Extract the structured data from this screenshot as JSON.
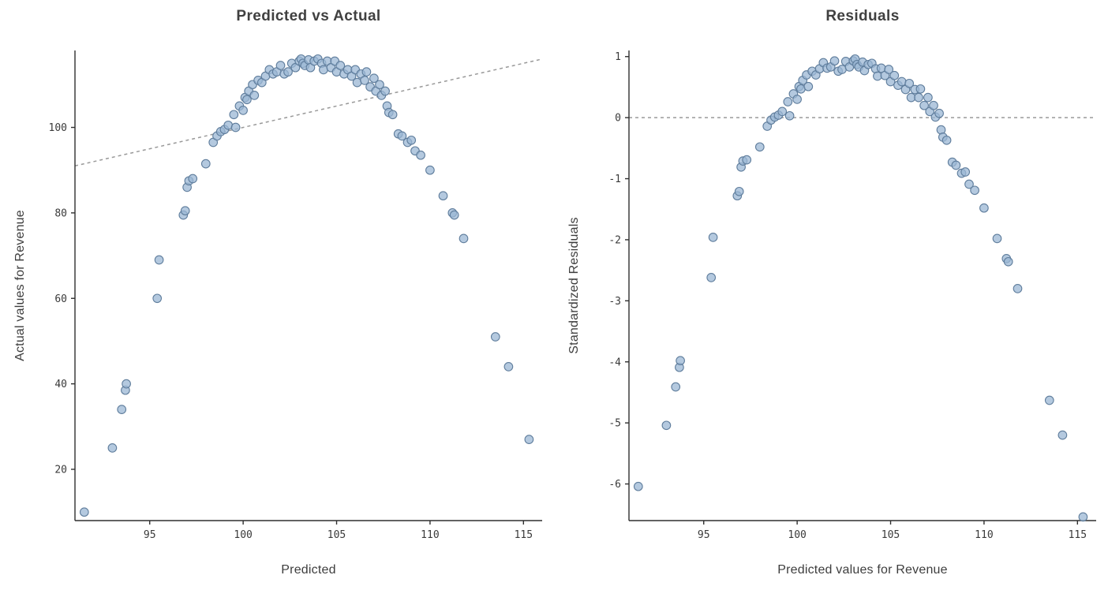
{
  "colors": {
    "background": "#ffffff",
    "marker_fill": "#9bb7d4",
    "marker_stroke": "#5f7d9c",
    "axis": "#2f2f2f",
    "reference_line": "#999999",
    "title_text": "#404040",
    "tick_text": "#3a3a3a"
  },
  "chart_data": [
    {
      "type": "scatter",
      "title": "Predicted vs Actual",
      "xlabel": "Predicted",
      "ylabel": "Actual values for Revenue",
      "xlim": [
        91,
        116
      ],
      "ylim": [
        8,
        118
      ],
      "xticks": [
        95,
        100,
        105,
        110,
        115
      ],
      "yticks": [
        20,
        40,
        60,
        80,
        100
      ],
      "grid": false,
      "legend": "none",
      "reference_line": {
        "label": "identity-line",
        "style": "dashed",
        "from": [
          91,
          91
        ],
        "to": [
          116,
          116
        ]
      },
      "x": [
        91.5,
        93.0,
        93.5,
        93.7,
        93.75,
        95.4,
        95.5,
        96.8,
        96.9,
        97.0,
        97.1,
        97.3,
        98.0,
        98.4,
        98.6,
        98.8,
        99.0,
        99.2,
        99.5,
        99.6,
        99.8,
        100.0,
        100.1,
        100.2,
        100.3,
        100.5,
        100.6,
        100.8,
        101.0,
        101.2,
        101.4,
        101.6,
        101.8,
        102.0,
        102.2,
        102.4,
        102.6,
        102.8,
        103.0,
        103.1,
        103.2,
        103.3,
        103.5,
        103.6,
        103.8,
        104.0,
        104.2,
        104.3,
        104.5,
        104.7,
        104.9,
        105.0,
        105.2,
        105.4,
        105.6,
        105.8,
        106.0,
        106.1,
        106.3,
        106.5,
        106.6,
        106.8,
        107.0,
        107.1,
        107.3,
        107.4,
        107.6,
        107.7,
        107.8,
        108.0,
        108.3,
        108.5,
        108.8,
        109.0,
        109.2,
        109.5,
        110.0,
        110.7,
        111.2,
        111.3,
        111.8,
        113.5,
        114.2,
        115.3
      ],
      "y": [
        10,
        25,
        34,
        38.5,
        40,
        60,
        69,
        79.5,
        80.5,
        86,
        87.5,
        88,
        91.5,
        96.5,
        98,
        99,
        99.5,
        100.5,
        103,
        100,
        105,
        104,
        107,
        106.5,
        108.5,
        110,
        107.5,
        111,
        110.5,
        112,
        113.5,
        112.5,
        113,
        114.5,
        112.5,
        113,
        115,
        114,
        115.5,
        116,
        115,
        114.5,
        115.8,
        114,
        115.5,
        116,
        115,
        113.5,
        115.5,
        114,
        115.5,
        113,
        114.5,
        112.5,
        113.5,
        112,
        113.5,
        110.5,
        112.5,
        111,
        113,
        109.5,
        111.5,
        108.5,
        110,
        107.5,
        108.5,
        105,
        103.5,
        103,
        98.5,
        98,
        96.5,
        97,
        94.5,
        93.5,
        90,
        84,
        80,
        79.5,
        74,
        51,
        44,
        27
      ]
    },
    {
      "type": "scatter",
      "title": "Residuals",
      "xlabel": "Predicted values for Revenue",
      "ylabel": "Standardized Residuals",
      "xlim": [
        91,
        116
      ],
      "ylim": [
        -6.6,
        1.1
      ],
      "xticks": [
        95,
        100,
        105,
        110,
        115
      ],
      "yticks": [
        -6,
        -5,
        -4,
        -3,
        -2,
        -1,
        0,
        1
      ],
      "grid": false,
      "legend": "none",
      "reference_line": {
        "label": "zero-line",
        "style": "dashed",
        "from": [
          91,
          0
        ],
        "to": [
          116,
          0
        ]
      },
      "x": [
        91.5,
        93.0,
        93.5,
        93.7,
        93.75,
        95.4,
        95.5,
        96.8,
        96.9,
        97.0,
        97.1,
        97.3,
        98.0,
        98.4,
        98.6,
        98.8,
        99.0,
        99.2,
        99.5,
        99.6,
        99.8,
        100.0,
        100.1,
        100.2,
        100.3,
        100.5,
        100.6,
        100.8,
        101.0,
        101.2,
        101.4,
        101.6,
        101.8,
        102.0,
        102.2,
        102.4,
        102.6,
        102.8,
        103.0,
        103.1,
        103.2,
        103.3,
        103.5,
        103.6,
        103.8,
        104.0,
        104.2,
        104.3,
        104.5,
        104.7,
        104.9,
        105.0,
        105.2,
        105.4,
        105.6,
        105.8,
        106.0,
        106.1,
        106.3,
        106.5,
        106.6,
        106.8,
        107.0,
        107.1,
        107.3,
        107.4,
        107.6,
        107.7,
        107.8,
        108.0,
        108.3,
        108.5,
        108.8,
        109.0,
        109.2,
        109.5,
        110.0,
        110.7,
        111.2,
        111.3,
        111.8,
        113.5,
        114.2,
        115.3
      ],
      "y": [
        -6.04,
        -5.04,
        -4.41,
        -4.09,
        -3.98,
        -2.62,
        -1.96,
        -1.28,
        -1.21,
        -0.81,
        -0.71,
        -0.69,
        -0.48,
        -0.14,
        -0.04,
        0.01,
        0.04,
        0.1,
        0.26,
        0.03,
        0.39,
        0.3,
        0.51,
        0.47,
        0.61,
        0.7,
        0.51,
        0.76,
        0.7,
        0.8,
        0.9,
        0.81,
        0.83,
        0.93,
        0.76,
        0.79,
        0.92,
        0.83,
        0.93,
        0.96,
        0.87,
        0.83,
        0.91,
        0.77,
        0.87,
        0.89,
        0.8,
        0.68,
        0.81,
        0.69,
        0.79,
        0.59,
        0.69,
        0.53,
        0.59,
        0.46,
        0.56,
        0.33,
        0.46,
        0.33,
        0.47,
        0.2,
        0.33,
        0.1,
        0.2,
        0.01,
        0.07,
        -0.2,
        -0.32,
        -0.37,
        -0.73,
        -0.78,
        -0.91,
        -0.89,
        -1.09,
        -1.19,
        -1.48,
        -1.98,
        -2.31,
        -2.36,
        -2.8,
        -4.63,
        -5.2,
        -6.54
      ]
    }
  ]
}
